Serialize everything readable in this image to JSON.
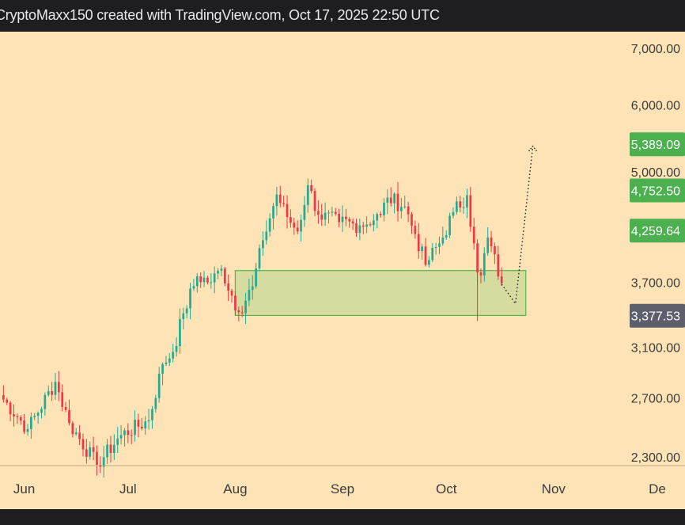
{
  "header": {
    "attribution": "CryptoMaxx150 created with TradingView.com, Oct 17, 2025 22:50 UTC"
  },
  "colors": {
    "background": "#fde3b5",
    "bar": "#1e1e22",
    "up": "#22ab94",
    "down": "#f23645",
    "zone_fill": "#d6dba0",
    "zone_stroke": "#53b84a",
    "label_green": "#4caf50",
    "label_gray": "#5d606b",
    "axis_text": "#3b3b3b"
  },
  "chart_data": {
    "type": "candlestick",
    "y_scale": "log",
    "ylim": [
      2150,
      7200
    ],
    "x_range": [
      "2025-05-25",
      "2025-12-09"
    ],
    "x_ticks": [
      {
        "label": "Jun",
        "date": "2025-06-01"
      },
      {
        "label": "Jul",
        "date": "2025-07-01"
      },
      {
        "label": "Aug",
        "date": "2025-08-01"
      },
      {
        "label": "Sep",
        "date": "2025-09-01"
      },
      {
        "label": "Oct",
        "date": "2025-10-01"
      },
      {
        "label": "Nov",
        "date": "2025-11-01"
      },
      {
        "label": "De",
        "date": "2025-12-01"
      }
    ],
    "y_ticks": [
      "7,000.00",
      "6,000.00",
      "5,000.00",
      "3,700.00",
      "3,100.00",
      "2,700.00",
      "2,300.00"
    ],
    "price_labels": [
      {
        "value": "5,389.09",
        "style": "green"
      },
      {
        "value": "4,752.50",
        "style": "green"
      },
      {
        "value": "4,259.64",
        "style": "green"
      },
      {
        "value": "3,377.53",
        "style": "gray"
      }
    ],
    "demand_zone": {
      "x_start": "2025-08-01",
      "x_end": "2025-10-24",
      "low": 3380,
      "high": 3820
    },
    "projection": [
      {
        "date": "2025-10-17",
        "price": 3680
      },
      {
        "date": "2025-10-21",
        "price": 3490
      },
      {
        "date": "2025-10-26",
        "price": 5360
      }
    ],
    "anchors": [
      {
        "date": "2025-05-25",
        "price": 2720
      },
      {
        "date": "2025-06-02",
        "price": 2480
      },
      {
        "date": "2025-06-10",
        "price": 2820
      },
      {
        "date": "2025-06-14",
        "price": 2520
      },
      {
        "date": "2025-06-22",
        "price": 2250
      },
      {
        "date": "2025-06-29",
        "price": 2440
      },
      {
        "date": "2025-07-07",
        "price": 2540
      },
      {
        "date": "2025-07-11",
        "price": 2960
      },
      {
        "date": "2025-07-14",
        "price": 3060
      },
      {
        "date": "2025-07-17",
        "price": 3400
      },
      {
        "date": "2025-07-21",
        "price": 3760
      },
      {
        "date": "2025-07-25",
        "price": 3700
      },
      {
        "date": "2025-07-28",
        "price": 3840
      },
      {
        "date": "2025-08-02",
        "price": 3410
      },
      {
        "date": "2025-08-06",
        "price": 3660
      },
      {
        "date": "2025-08-09",
        "price": 4150
      },
      {
        "date": "2025-08-13",
        "price": 4700
      },
      {
        "date": "2025-08-16",
        "price": 4420
      },
      {
        "date": "2025-08-19",
        "price": 4250
      },
      {
        "date": "2025-08-22",
        "price": 4820
      },
      {
        "date": "2025-08-25",
        "price": 4450
      },
      {
        "date": "2025-08-31",
        "price": 4360
      },
      {
        "date": "2025-09-06",
        "price": 4320
      },
      {
        "date": "2025-09-12",
        "price": 4440
      },
      {
        "date": "2025-09-14",
        "price": 4660
      },
      {
        "date": "2025-09-19",
        "price": 4550
      },
      {
        "date": "2025-09-22",
        "price": 4220
      },
      {
        "date": "2025-09-25",
        "price": 3880
      },
      {
        "date": "2025-09-30",
        "price": 4180
      },
      {
        "date": "2025-10-03",
        "price": 4480
      },
      {
        "date": "2025-10-07",
        "price": 4690
      },
      {
        "date": "2025-10-10",
        "price": 3800
      },
      {
        "date": "2025-10-11",
        "price": 3770
      },
      {
        "date": "2025-10-13",
        "price": 4180
      },
      {
        "date": "2025-10-17",
        "price": 3690
      }
    ]
  }
}
